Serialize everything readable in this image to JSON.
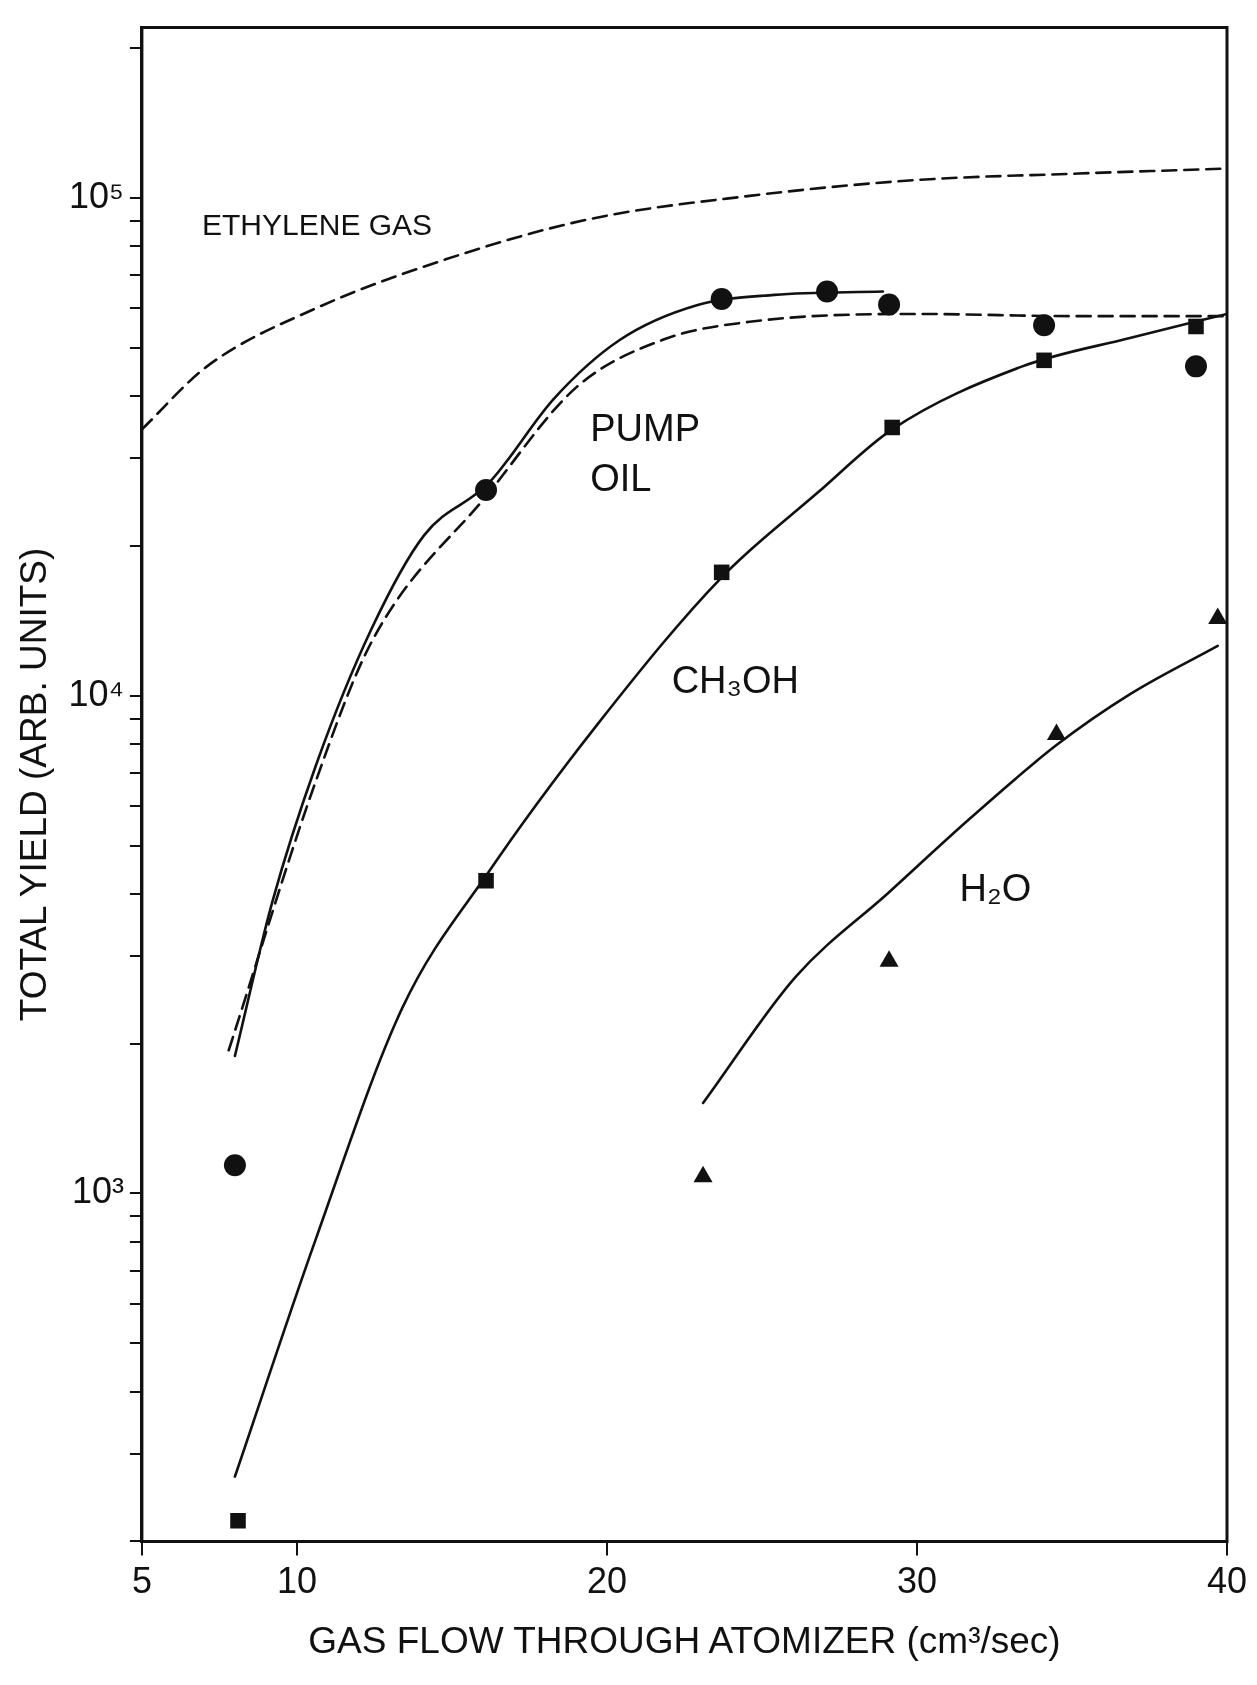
{
  "chart_data": {
    "type": "line",
    "xlabel": "GAS FLOW THROUGH ATOMIZER (cm³/sec)",
    "ylabel": "TOTAL YIELD (ARB. UNITS)",
    "log": "y",
    "grid": false,
    "legend": false,
    "xlim": [
      5,
      40
    ],
    "xticks": [
      5,
      10,
      20,
      30,
      40
    ],
    "ylim": [
      200,
      220000
    ],
    "yticks": [
      {
        "value": 200,
        "label": null
      },
      {
        "value": 300,
        "label": null
      },
      {
        "value": 400,
        "label": null
      },
      {
        "value": 500,
        "label": null
      },
      {
        "value": 600,
        "label": null
      },
      {
        "value": 700,
        "label": null
      },
      {
        "value": 800,
        "label": null
      },
      {
        "value": 900,
        "label": null
      },
      {
        "value": 1000,
        "label": "10³"
      },
      {
        "value": 2000,
        "label": null
      },
      {
        "value": 3000,
        "label": null
      },
      {
        "value": 4000,
        "label": null
      },
      {
        "value": 5000,
        "label": null
      },
      {
        "value": 6000,
        "label": null
      },
      {
        "value": 7000,
        "label": null
      },
      {
        "value": 8000,
        "label": null
      },
      {
        "value": 9000,
        "label": null
      },
      {
        "value": 10000,
        "label": "10⁴"
      },
      {
        "value": 20000,
        "label": null
      },
      {
        "value": 30000,
        "label": null
      },
      {
        "value": 40000,
        "label": null
      },
      {
        "value": 50000,
        "label": null
      },
      {
        "value": 60000,
        "label": null
      },
      {
        "value": 70000,
        "label": null
      },
      {
        "value": 80000,
        "label": null
      },
      {
        "value": 90000,
        "label": null
      },
      {
        "value": 100000,
        "label": "10⁵"
      },
      {
        "value": 200000,
        "label": null
      }
    ],
    "series": [
      {
        "name": "ETHYLENE GAS",
        "line_style": "dashed",
        "marker": "none",
        "color": "#111111",
        "x": [
          5,
          7.1,
          10.6,
          14.8,
          19.4,
          24.6,
          29.9,
          35.2,
          40
        ],
        "values": [
          34300,
          45900,
          60000,
          75300,
          90600,
          101000,
          108600,
          112000,
          114600
        ]
      },
      {
        "type": "scatter",
        "marker": "circle",
        "color": "#111111",
        "x": [
          8,
          16.1,
          23.7,
          27.1,
          29.1,
          34.1,
          39
        ],
        "values": [
          1140,
          25900,
          62700,
          64900,
          61100,
          55500,
          45900
        ]
      },
      {
        "name": "PUMP OIL",
        "line_style": "solid",
        "marker": "none",
        "color": "#111111",
        "x": [
          8,
          9.2,
          10.6,
          12.4,
          14.1,
          16.2,
          18.3,
          20.4,
          22.9,
          25.4,
          28.9
        ],
        "values": [
          1890,
          3840,
          7210,
          13600,
          21000,
          26800,
          39600,
          51800,
          60900,
          63900,
          64900
        ]
      },
      {
        "line_style": "dashed",
        "marker": "none",
        "color": "#111111",
        "x": [
          7.8,
          10.6,
          12.4,
          16.2,
          19,
          21.8,
          24.6,
          29.9,
          35.2,
          40
        ],
        "values": [
          1940,
          6710,
          12800,
          25600,
          41600,
          51900,
          56400,
          58500,
          57900,
          57900
        ]
      },
      {
        "type": "scatter",
        "marker": "square",
        "color": "#111111",
        "x": [
          8.1,
          16.1,
          23.7,
          29.2,
          34.1,
          39
        ],
        "values": [
          220,
          4250,
          17700,
          34600,
          47200,
          55200
        ]
      },
      {
        "name": "CH₃OH",
        "line_style": "solid",
        "marker": "none",
        "color": "#111111",
        "x": [
          8,
          10.6,
          13.4,
          16.2,
          19.7,
          23.7,
          26.8,
          29.2,
          33.4,
          36.9,
          40
        ],
        "values": [
          270,
          807,
          2360,
          4440,
          8770,
          17300,
          25600,
          34300,
          45900,
          52400,
          58500
        ]
      },
      {
        "type": "scatter",
        "marker": "triangle",
        "color": "#111111",
        "x": [
          23.1,
          29.1,
          34.5,
          39.7
        ],
        "values": [
          1080,
          2930,
          8360,
          14300
        ]
      },
      {
        "name": "H₂O",
        "line_style": "solid",
        "marker": "none",
        "color": "#111111",
        "x": [
          23.1,
          26.1,
          29.1,
          31.7,
          34.5,
          36.9,
          39.7
        ],
        "values": [
          1520,
          2730,
          4030,
          5660,
          7960,
          10100,
          12600
        ]
      }
    ]
  }
}
